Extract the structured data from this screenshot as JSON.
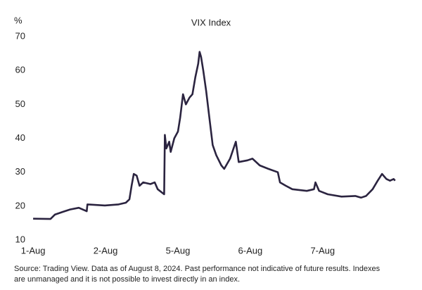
{
  "chart_data": {
    "type": "line",
    "title": "VIX Index",
    "y_unit": "%",
    "x": [
      0,
      0.24,
      0.3,
      0.41,
      0.51,
      0.63,
      0.74,
      0.75,
      0.99,
      1.18,
      1.28,
      1.33,
      1.36,
      1.39,
      1.43,
      1.47,
      1.52,
      1.62,
      1.68,
      1.72,
      1.81,
      1.82,
      1.84,
      1.88,
      1.9,
      1.95,
      2.0,
      2.03,
      2.07,
      2.11,
      2.16,
      2.2,
      2.24,
      2.28,
      2.3,
      2.32,
      2.35,
      2.39,
      2.44,
      2.48,
      2.53,
      2.6,
      2.64,
      2.72,
      2.8,
      2.84,
      2.96,
      3.03,
      3.13,
      3.25,
      3.38,
      3.41,
      3.49,
      3.58,
      3.78,
      3.88,
      3.9,
      3.95,
      4.07,
      4.26,
      4.45,
      4.53,
      4.6,
      4.69,
      4.76,
      4.82,
      4.88,
      4.93,
      4.98,
      5.0
    ],
    "series": [
      {
        "name": "VIX",
        "color": "#2b2440",
        "values": [
          16.3,
          16.2,
          17.5,
          18.3,
          19,
          19.5,
          18.5,
          20.5,
          20.2,
          20.5,
          21,
          22,
          26,
          29.5,
          29,
          26,
          27,
          26.5,
          27,
          25,
          23.5,
          41,
          37,
          39,
          36,
          40,
          42,
          46,
          53,
          50,
          52,
          53,
          58,
          62,
          65.5,
          64,
          60,
          54,
          45,
          38,
          35,
          32,
          31,
          34,
          39,
          33,
          33.5,
          34,
          32,
          31,
          30,
          27,
          26,
          25,
          24.5,
          25,
          27,
          24.5,
          23.5,
          22.8,
          23,
          22.5,
          23,
          25,
          27.5,
          29.5,
          28,
          27.5,
          28,
          27.5
        ]
      }
    ],
    "xlim": [
      -0.05,
      5.1
    ],
    "xticks": [
      {
        "value": 0,
        "label": "1-Aug"
      },
      {
        "value": 1,
        "label": "2-Aug"
      },
      {
        "value": 2,
        "label": "5-Aug"
      },
      {
        "value": 3,
        "label": "6-Aug"
      },
      {
        "value": 4,
        "label": "7-Aug"
      }
    ],
    "ylim": [
      10,
      70
    ],
    "yticks": [
      10,
      20,
      30,
      40,
      50,
      60,
      70
    ],
    "grid": false,
    "source": [
      "Source: Trading View. Data as of August 8, 2024. Past performance not indicative of future results. Indexes",
      "are unmanaged and it is not possible to invest directly in an index."
    ]
  }
}
